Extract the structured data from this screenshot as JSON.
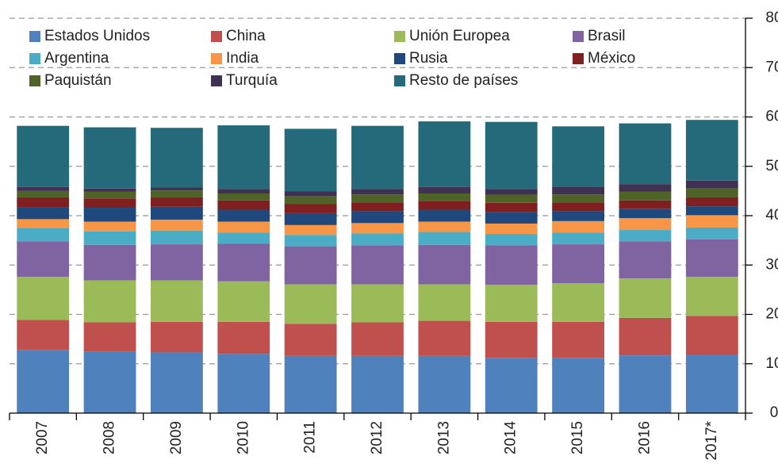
{
  "chart_data": {
    "type": "stacked_bar",
    "categories": [
      "2007",
      "2008",
      "2009",
      "2010",
      "2011",
      "2012",
      "2013",
      "2014",
      "2015",
      "2016",
      "2017*"
    ],
    "series": [
      {
        "name": "Estados Unidos",
        "color": "#4f81bd",
        "values": [
          12.8,
          12.4,
          12.3,
          12.0,
          11.6,
          11.6,
          11.6,
          11.2,
          11.2,
          11.7,
          11.8
        ]
      },
      {
        "name": "China",
        "color": "#c0504d",
        "values": [
          6.1,
          6.0,
          6.2,
          6.5,
          6.5,
          6.8,
          7.1,
          7.3,
          7.3,
          7.6,
          7.9
        ]
      },
      {
        "name": "Unión Europea",
        "color": "#9bbb59",
        "values": [
          8.7,
          8.5,
          8.4,
          8.2,
          8.0,
          7.7,
          7.4,
          7.5,
          7.8,
          8.0,
          7.9
        ]
      },
      {
        "name": "Brasil",
        "color": "#8064a2",
        "values": [
          7.2,
          7.2,
          7.3,
          7.6,
          7.7,
          7.9,
          8.0,
          8.0,
          7.9,
          7.5,
          7.6
        ]
      },
      {
        "name": "Argentina",
        "color": "#4bacc6",
        "values": [
          2.7,
          2.7,
          2.8,
          2.3,
          2.3,
          2.4,
          2.6,
          2.3,
          2.4,
          2.3,
          2.4
        ]
      },
      {
        "name": "India",
        "color": "#f79646",
        "values": [
          1.8,
          2.0,
          2.2,
          2.2,
          2.0,
          2.1,
          2.1,
          2.1,
          2.3,
          2.4,
          2.5
        ]
      },
      {
        "name": "Rusia",
        "color": "#1f497d",
        "values": [
          2.4,
          2.8,
          2.6,
          2.4,
          2.4,
          2.4,
          2.4,
          2.3,
          2.0,
          1.9,
          1.8
        ]
      },
      {
        "name": "México",
        "color": "#7f1f1f",
        "values": [
          2.0,
          1.9,
          1.9,
          1.9,
          1.9,
          1.8,
          1.8,
          1.9,
          1.8,
          1.7,
          1.8
        ]
      },
      {
        "name": "Paquistán",
        "color": "#4f6228",
        "values": [
          1.3,
          1.4,
          1.4,
          1.4,
          1.5,
          1.6,
          1.5,
          1.6,
          1.6,
          1.8,
          1.8
        ]
      },
      {
        "name": "Turquía",
        "color": "#3f3151",
        "values": [
          0.8,
          0.6,
          0.6,
          0.9,
          1.0,
          1.1,
          1.3,
          1.2,
          1.6,
          1.5,
          1.6
        ]
      },
      {
        "name": "Resto de países",
        "color": "#256a7b",
        "values": [
          12.4,
          12.4,
          12.1,
          12.9,
          12.7,
          12.8,
          13.3,
          13.6,
          12.2,
          12.3,
          12.3
        ]
      }
    ],
    "ylim": [
      0,
      80
    ],
    "yticks": [
      0,
      10,
      20,
      30,
      40,
      50,
      60,
      70,
      80
    ],
    "grid": true
  }
}
